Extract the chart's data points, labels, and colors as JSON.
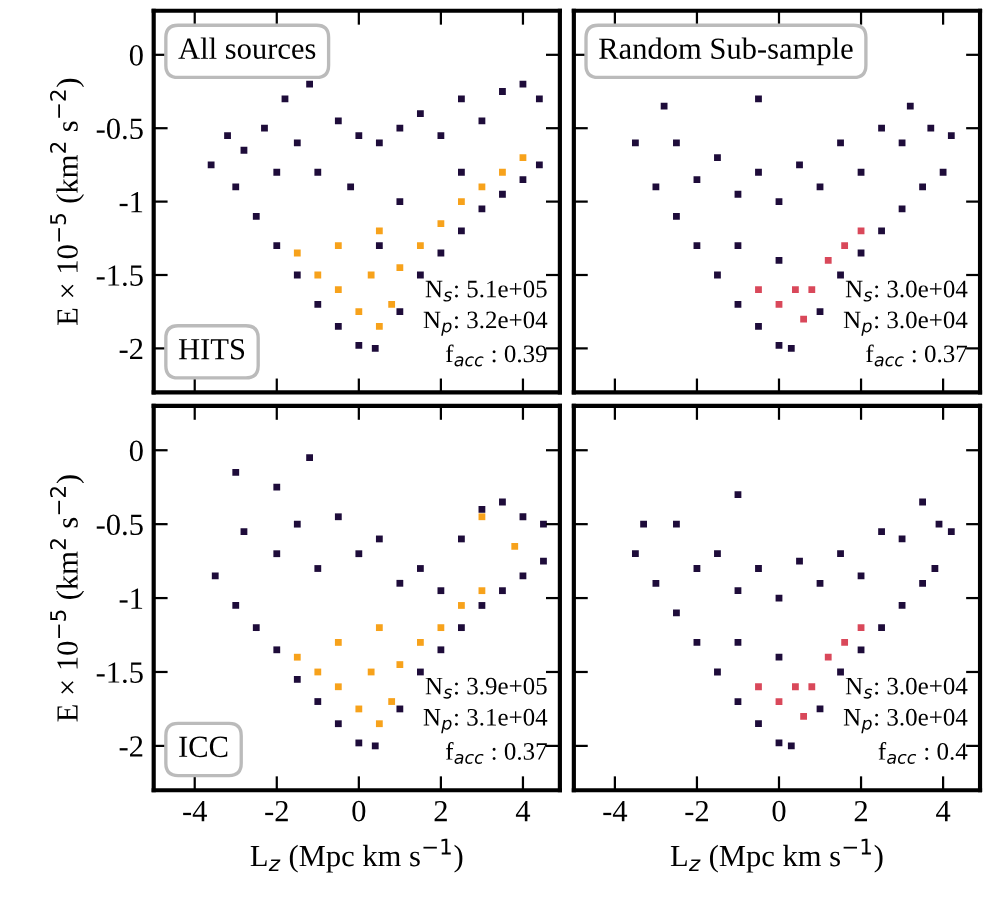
{
  "chart_data": [
    {
      "type": "scatter",
      "title": "All sources",
      "ylabel": "E × 10$^{−5}$ (km$^{2}$ s$^{−2}$)",
      "xlim": [
        -5,
        4.9
      ],
      "ylim": [
        -2.3,
        0.3
      ],
      "xticks": [
        -4,
        -2,
        0,
        2,
        4
      ],
      "yticks": [
        0,
        -0.5,
        -1,
        -1.5,
        -2
      ],
      "marker": "square",
      "tick_labels": "y",
      "annotations": [
        "HITS",
        "N$_{s}$: 5.1e+05",
        "N$_{p}$: 3.2e+04",
        "f$_{acc}$ : 0.39"
      ],
      "series": [
        {
          "color": "#1e0c3a",
          "x": [
            -3.6,
            -3.2,
            -3.0,
            -2.8,
            -2.5,
            -2.3,
            -2.0,
            -1.8,
            -1.5,
            -1.5,
            -1.2,
            -1.0,
            -1.0,
            -0.5,
            -0.5,
            0,
            0,
            0.4,
            0.5,
            1.0,
            1.0,
            1.5,
            1.5,
            2.0,
            2.0,
            2.5,
            2.5,
            3.0,
            3.0,
            3.5,
            3.5,
            4.0,
            4.0,
            4.4,
            4.4,
            -0.2,
            1.0,
            2.5,
            -2.0,
            0.5
          ],
          "values": [
            -0.75,
            -0.55,
            -0.9,
            -0.65,
            -1.1,
            -0.5,
            -1.3,
            -0.3,
            -0.6,
            -1.5,
            -0.2,
            -0.8,
            -1.7,
            -0.45,
            -1.85,
            -0.55,
            -1.98,
            -2.0,
            -0.6,
            -0.5,
            -1.75,
            -0.4,
            -1.5,
            -0.55,
            -1.35,
            -0.3,
            -1.2,
            -0.45,
            -1.05,
            -0.25,
            -0.95,
            -0.2,
            -0.85,
            -0.3,
            -0.75,
            -0.9,
            -1.0,
            -0.8,
            -0.8,
            -1.3
          ]
        },
        {
          "color": "#f7a21b",
          "x": [
            -1.5,
            -1.0,
            -0.5,
            0,
            0.5,
            0.8,
            0.3,
            1.0,
            1.5,
            2.0,
            2.5,
            3.0,
            3.5,
            4.0,
            -0.5,
            0.5
          ],
          "values": [
            -1.35,
            -1.5,
            -1.6,
            -1.75,
            -1.85,
            -1.7,
            -1.5,
            -1.45,
            -1.3,
            -1.15,
            -1.0,
            -0.9,
            -0.8,
            -0.7,
            -1.3,
            -1.2
          ]
        }
      ]
    },
    {
      "type": "scatter",
      "title": "Random Sub-sample",
      "xlim": [
        -5,
        4.9
      ],
      "ylim": [
        -2.3,
        0.3
      ],
      "xticks": [
        -4,
        -2,
        0,
        2,
        4
      ],
      "yticks": [
        0,
        -0.5,
        -1,
        -1.5,
        -2
      ],
      "marker": "square",
      "tick_labels": false,
      "annotations": [
        "N$_{s}$: 3.0e+04",
        "N$_{p}$: 3.0e+04",
        "f$_{acc}$ : 0.37"
      ],
      "series": [
        {
          "color": "#1e0c3a",
          "x": [
            -3.5,
            -3.0,
            -2.5,
            -2.0,
            -1.5,
            -1.0,
            -0.5,
            0,
            0.3,
            -2.5,
            -2.0,
            -1.5,
            -1.0,
            -0.5,
            0,
            0.5,
            1.0,
            1.5,
            2.0,
            2.5,
            3.0,
            3.2,
            3.7,
            4.2,
            4.0,
            3.5,
            3.0,
            2.5,
            2.0,
            1.5,
            1.0,
            -1.0,
            0,
            -0.5,
            -2.8
          ],
          "values": [
            -0.6,
            -0.9,
            -1.1,
            -1.3,
            -1.5,
            -1.7,
            -1.85,
            -1.98,
            -2.0,
            -0.6,
            -0.85,
            -0.7,
            -0.95,
            -0.8,
            -1.0,
            -0.75,
            -0.9,
            -0.6,
            -0.8,
            -0.5,
            -0.6,
            -0.35,
            -0.5,
            -0.55,
            -0.8,
            -0.9,
            -1.05,
            -1.2,
            -1.35,
            -1.5,
            -1.75,
            -1.3,
            -1.4,
            -0.3,
            -0.35
          ]
        },
        {
          "color": "#d9485a",
          "x": [
            0.6,
            0.8,
            1.2,
            1.6,
            2.0,
            0.4,
            0,
            -0.5
          ],
          "values": [
            -1.8,
            -1.6,
            -1.4,
            -1.3,
            -1.2,
            -1.6,
            -1.7,
            -1.6
          ]
        }
      ]
    },
    {
      "type": "scatter",
      "xlabel": "L$_{z}$ (Mpc km s$^{−1}$)",
      "ylabel": "E × 10$^{−5}$ (km$^{2}$ s$^{−2}$)",
      "xlim": [
        -5,
        4.9
      ],
      "ylim": [
        -2.3,
        0.3
      ],
      "xticks": [
        -4,
        -2,
        0,
        2,
        4
      ],
      "yticks": [
        0,
        -0.5,
        -1,
        -1.5,
        -2
      ],
      "marker": "square",
      "annotations": [
        "ICC",
        "N$_{s}$: 3.9e+05",
        "N$_{p}$: 3.1e+04",
        "f$_{acc}$ : 0.37"
      ],
      "series": [
        {
          "color": "#1e0c3a",
          "x": [
            -3.5,
            -3.0,
            -2.5,
            -2.0,
            -1.5,
            -1.0,
            -0.5,
            0,
            0.4,
            -2.8,
            -2.0,
            -1.5,
            -1.0,
            -0.5,
            0,
            0.5,
            1.0,
            1.5,
            2.0,
            2.5,
            3.0,
            3.5,
            4.0,
            4.5,
            4.5,
            4.0,
            3.5,
            3.0,
            2.5,
            2.0,
            1.5,
            1.0,
            -2.0,
            -1.2,
            -3.0
          ],
          "values": [
            -0.85,
            -1.05,
            -1.2,
            -1.35,
            -1.55,
            -1.7,
            -1.85,
            -1.98,
            -2.0,
            -0.55,
            -0.7,
            -0.5,
            -0.8,
            -0.45,
            -0.7,
            -0.6,
            -0.9,
            -0.8,
            -0.95,
            -0.6,
            -0.4,
            -0.35,
            -0.45,
            -0.5,
            -0.75,
            -0.85,
            -0.95,
            -1.05,
            -1.2,
            -1.35,
            -1.5,
            -1.75,
            -0.25,
            -0.05,
            -0.15
          ]
        },
        {
          "color": "#f7a21b",
          "x": [
            -1.5,
            -1.0,
            -0.5,
            0,
            0.5,
            0.8,
            0.3,
            1.0,
            1.5,
            2.0,
            2.5,
            3.0,
            3.8,
            -0.5,
            0.5,
            3.0
          ],
          "values": [
            -1.4,
            -1.5,
            -1.6,
            -1.75,
            -1.85,
            -1.7,
            -1.5,
            -1.45,
            -1.3,
            -1.2,
            -1.05,
            -0.95,
            -0.65,
            -1.3,
            -1.2,
            -0.45
          ]
        }
      ]
    },
    {
      "type": "scatter",
      "xlabel": "L$_{z}$ (Mpc km s$^{−1}$)",
      "xlim": [
        -5,
        4.9
      ],
      "ylim": [
        -2.3,
        0.3
      ],
      "xticks": [
        -4,
        -2,
        0,
        2,
        4
      ],
      "yticks": [
        0,
        -0.5,
        -1,
        -1.5,
        -2
      ],
      "marker": "square",
      "tick_labels": "x",
      "annotations": [
        "N$_{s}$: 3.0e+04",
        "N$_{p}$: 3.0e+04",
        "f$_{acc}$ : 0.4"
      ],
      "series": [
        {
          "color": "#1e0c3a",
          "x": [
            -3.5,
            -3.0,
            -2.5,
            -2.0,
            -1.5,
            -1.0,
            -0.5,
            0,
            0.3,
            -3.3,
            -2.5,
            -2.0,
            -1.5,
            -1.0,
            -0.5,
            0,
            0.5,
            1.0,
            1.5,
            2.0,
            2.5,
            3.0,
            3.5,
            3.9,
            4.2,
            3.8,
            3.5,
            3.0,
            2.5,
            2.0,
            1.5,
            1.0,
            -1.0,
            0,
            -1.0
          ],
          "values": [
            -0.7,
            -0.9,
            -1.1,
            -1.3,
            -1.5,
            -1.7,
            -1.85,
            -1.98,
            -2.0,
            -0.5,
            -0.5,
            -0.8,
            -0.7,
            -0.95,
            -0.8,
            -1.0,
            -0.75,
            -0.9,
            -0.7,
            -0.85,
            -0.55,
            -0.6,
            -0.35,
            -0.5,
            -0.55,
            -0.8,
            -0.9,
            -1.05,
            -1.2,
            -1.35,
            -1.5,
            -1.75,
            -1.3,
            -1.4,
            -0.3
          ]
        },
        {
          "color": "#d9485a",
          "x": [
            0.6,
            0.8,
            1.2,
            1.6,
            2.0,
            0.4,
            0,
            -0.5
          ],
          "values": [
            -1.8,
            -1.6,
            -1.4,
            -1.3,
            -1.2,
            -1.6,
            -1.7,
            -1.6
          ]
        }
      ]
    }
  ]
}
